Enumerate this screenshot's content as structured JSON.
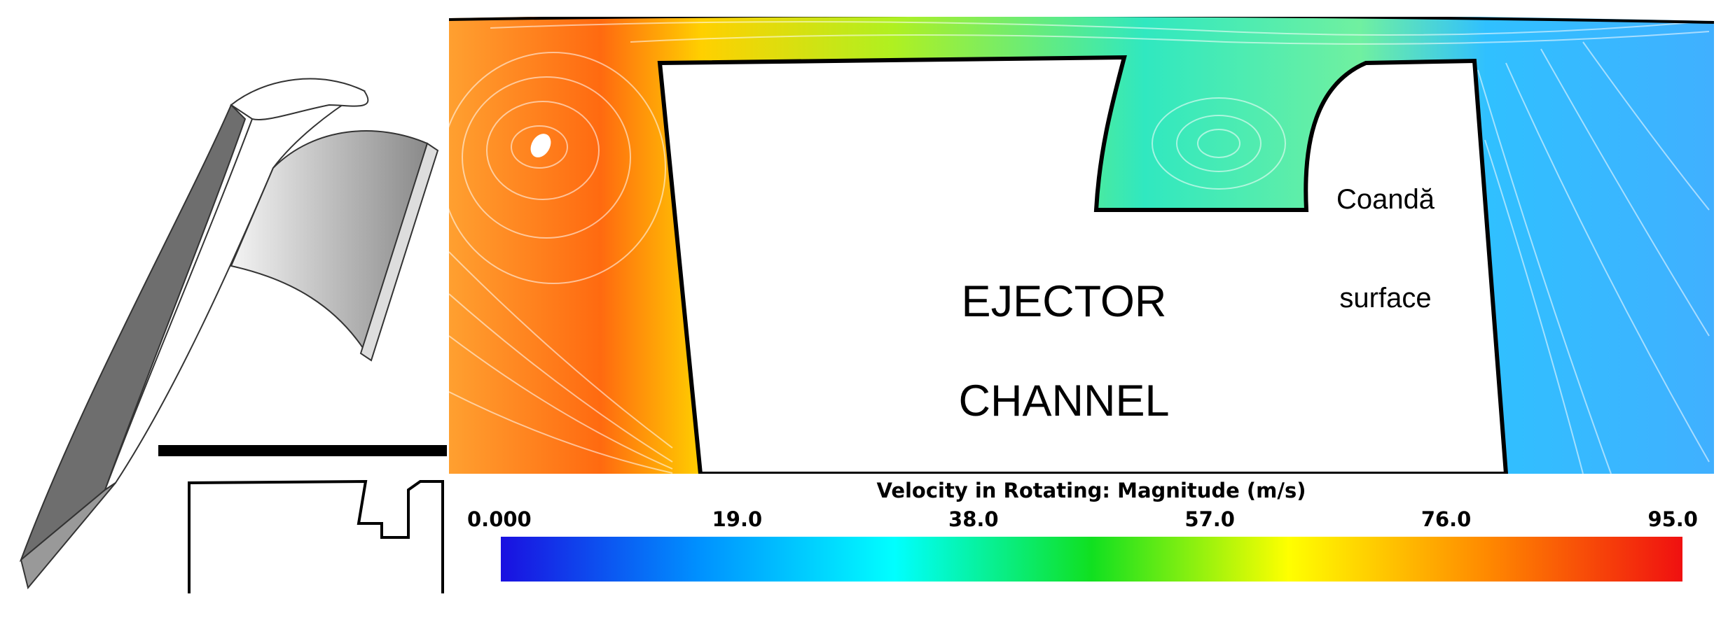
{
  "labels": {
    "coanda": "Coandă",
    "surface": "surface",
    "ejector": "EJECTOR",
    "channel": "CHANNEL"
  },
  "colorbar": {
    "title": "Velocity in Rotating: Magnitude (m/s)",
    "lim": [
      0,
      95
    ],
    "ticks": [
      {
        "value": 0,
        "label": "0.000"
      },
      {
        "value": 19,
        "label": "19.0"
      },
      {
        "value": 38,
        "label": "38.0"
      },
      {
        "value": 57,
        "label": "57.0"
      },
      {
        "value": 76,
        "label": "76.0"
      },
      {
        "value": 95,
        "label": "95.0"
      }
    ],
    "colors": [
      "#1a10e0",
      "#0090ff",
      "#00ffff",
      "#10e020",
      "#ffff00",
      "#ff8a00",
      "#f01010"
    ]
  }
}
